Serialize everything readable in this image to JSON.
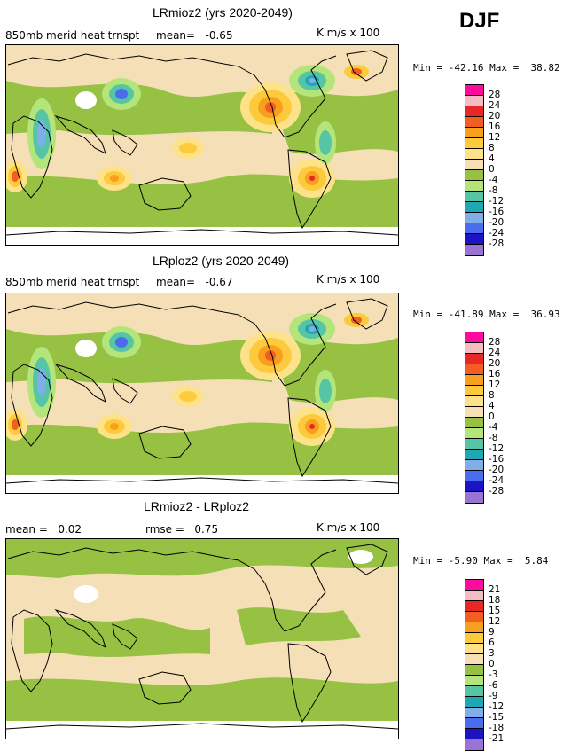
{
  "season": "DJF",
  "colors": {
    "pos4": "#f4dfb6",
    "pos8": "#fde28a",
    "pos12": "#fcca3a",
    "pos16": "#f8a01e",
    "pos20": "#f35d21",
    "pos24": "#e72827",
    "pos28": "#f6bcc4",
    "pos32": "#ff0a9e",
    "neg4": "#96c142",
    "neg8": "#b4e57b",
    "neg12": "#56c5a6",
    "neg16": "#1fa8b4",
    "neg20": "#7faee9",
    "neg24": "#4a6df0",
    "neg28": "#1c14c4",
    "neg32": "#9974d4",
    "land_outline": "#000000"
  },
  "panels": [
    {
      "title": "LRmioz2 (yrs 2020-2049)",
      "left_text": "850mb merid heat trnspt",
      "mid_text": "mean=   -0.65",
      "right_text": "K m/s x 100",
      "minmax": "Min = -42.16 Max =  38.82",
      "colorbar_labels": [
        "28",
        "24",
        "20",
        "16",
        "12",
        "8",
        "4",
        "0",
        "-4",
        "-8",
        "-12",
        "-16",
        "-20",
        "-24",
        "-28"
      ]
    },
    {
      "title": "LRploz2 (yrs 2020-2049)",
      "left_text": "850mb merid heat trnspt",
      "mid_text": "mean=   -0.67",
      "right_text": "K m/s x 100",
      "minmax": "Min = -41.89 Max =  36.93",
      "colorbar_labels": [
        "28",
        "24",
        "20",
        "16",
        "12",
        "8",
        "4",
        "0",
        "-4",
        "-8",
        "-12",
        "-16",
        "-20",
        "-24",
        "-28"
      ]
    },
    {
      "title": "LRmioz2 - LRploz2",
      "left_text": "mean =   0.02",
      "mid_text": "rmse =   0.75",
      "right_text": "K m/s x 100",
      "minmax": "Min = -5.90 Max =  5.84",
      "colorbar_labels": [
        "21",
        "18",
        "15",
        "12",
        "9",
        "6",
        "3",
        "0",
        "-3",
        "-6",
        "-9",
        "-12",
        "-15",
        "-18",
        "-21"
      ]
    }
  ]
}
